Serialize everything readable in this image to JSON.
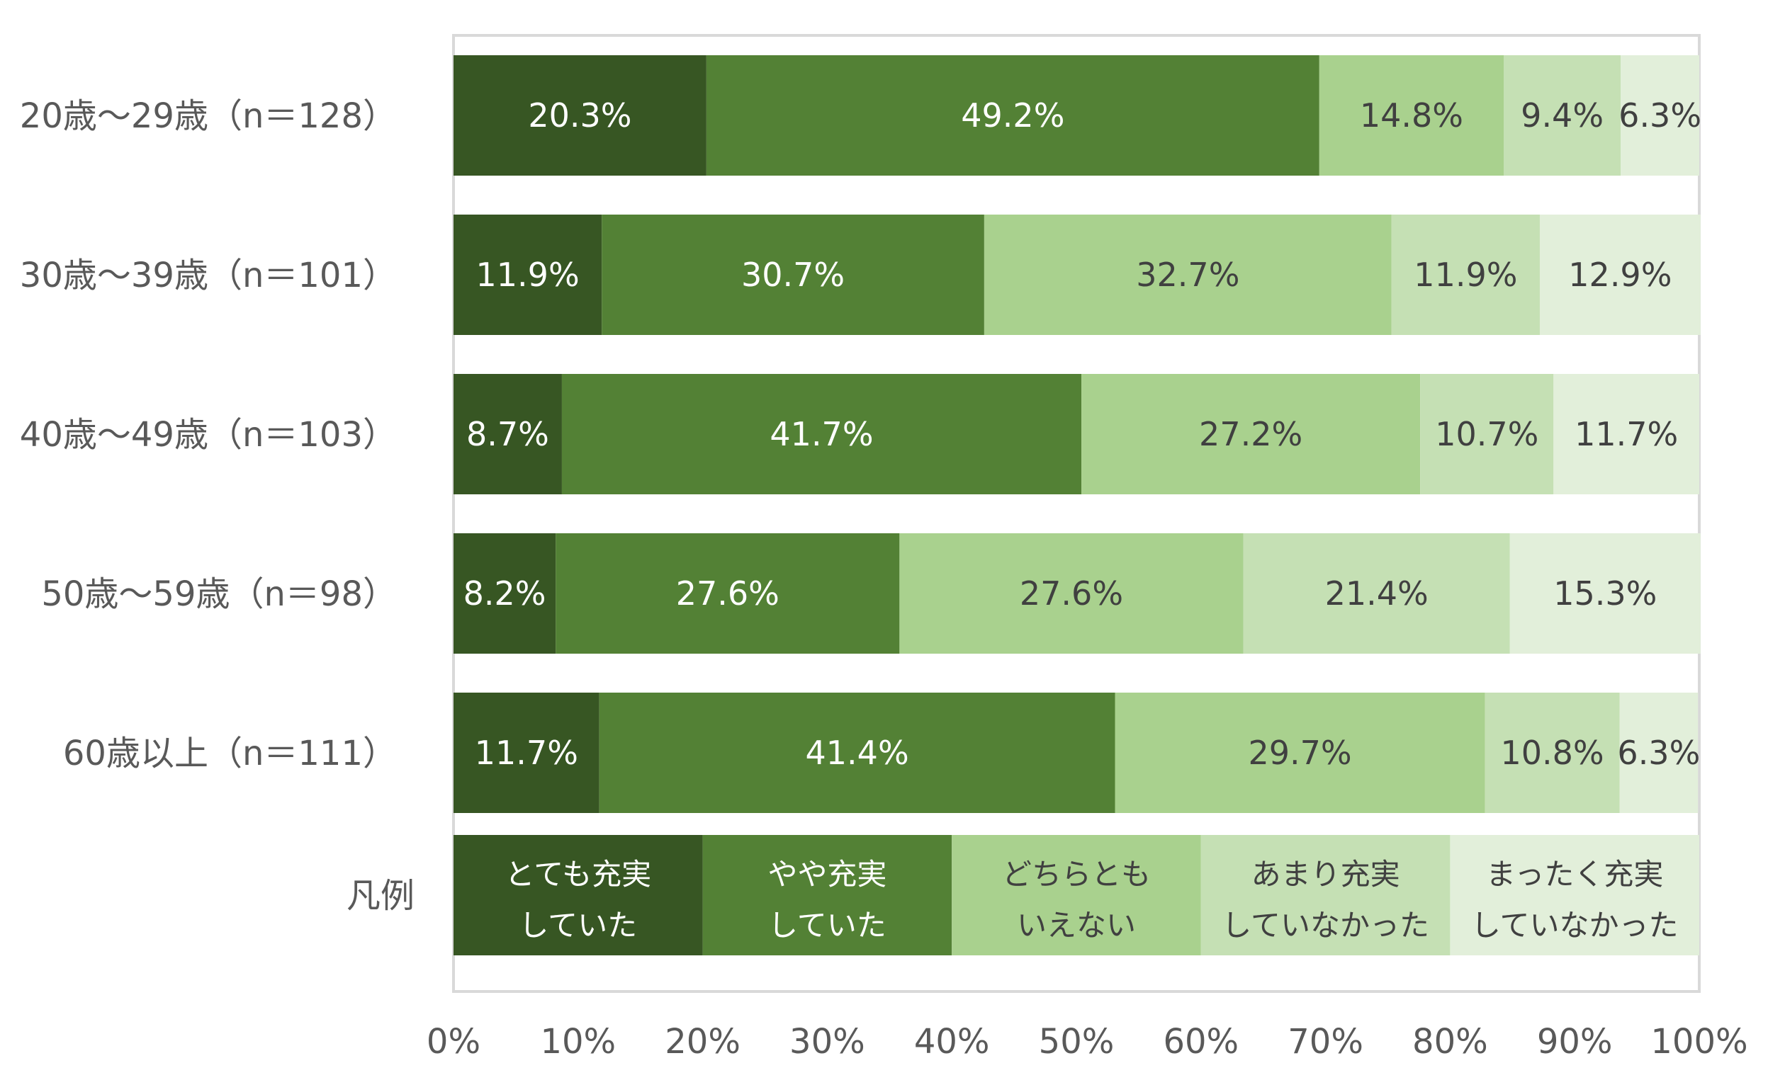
{
  "chart_data": {
    "type": "bar",
    "orientation": "horizontal",
    "stacked": true,
    "title": "",
    "categories": [
      "20歳～29歳（n＝128）",
      "30歳～39歳（n＝101）",
      "40歳～49歳（n＝103）",
      "50歳～59歳（n＝98）",
      "60歳以上（n＝111）"
    ],
    "series": [
      {
        "name": "とても充実していた",
        "legend_lines": [
          "とても充実",
          "していた"
        ],
        "color": "#375623",
        "text_color": "#ffffff",
        "values": [
          20.3,
          11.9,
          8.7,
          8.2,
          11.7
        ]
      },
      {
        "name": "やや充実していた",
        "legend_lines": [
          "やや充実",
          "していた"
        ],
        "color": "#538135",
        "text_color": "#ffffff",
        "values": [
          49.2,
          30.7,
          41.7,
          27.6,
          41.4
        ]
      },
      {
        "name": "どちらともいえない",
        "legend_lines": [
          "どちらとも",
          "いえない"
        ],
        "color": "#a9d18e",
        "text_color": "#404040",
        "values": [
          14.8,
          32.7,
          27.2,
          27.6,
          29.7
        ]
      },
      {
        "name": "あまり充実していなかった",
        "legend_lines": [
          "あまり充実",
          "していなかった"
        ],
        "color": "#c5e0b4",
        "text_color": "#404040",
        "values": [
          9.4,
          11.9,
          10.7,
          21.4,
          10.8
        ]
      },
      {
        "name": "まったく充実していなかった",
        "legend_lines": [
          "まったく充実",
          "していなかった"
        ],
        "color": "#e2efda",
        "text_color": "#404040",
        "values": [
          6.3,
          12.9,
          11.7,
          15.3,
          6.3
        ]
      }
    ],
    "legend_row_label": "凡例",
    "x_ticks": [
      "0%",
      "10%",
      "20%",
      "30%",
      "40%",
      "50%",
      "60%",
      "70%",
      "80%",
      "90%",
      "100%"
    ],
    "xlim": [
      0,
      100
    ],
    "value_suffix": "%",
    "grid": false,
    "legend": "bottom-row"
  }
}
